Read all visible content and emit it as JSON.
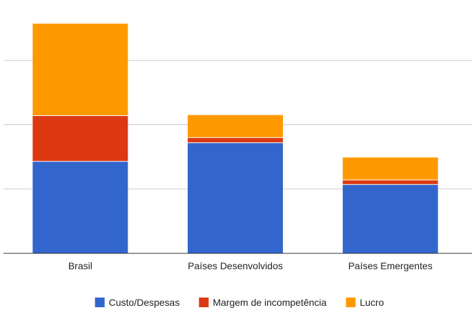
{
  "chart_data": {
    "type": "bar",
    "stacked": true,
    "categories": [
      "Brasil",
      "Países Desenvolvidos",
      "Países Emergentes"
    ],
    "series": [
      {
        "name": "Custo/Despesas",
        "color": "#3366cc",
        "values": [
          1.43,
          1.72,
          1.07
        ]
      },
      {
        "name": "Margem de incompetência",
        "color": "#dc3912",
        "values": [
          0.71,
          0.08,
          0.07
        ]
      },
      {
        "name": "Lucro",
        "color": "#ff9900",
        "values": [
          1.43,
          0.35,
          0.35
        ]
      }
    ],
    "ylim": [
      0,
      4
    ],
    "gridlines": [
      1,
      2,
      3
    ],
    "grid": true,
    "legend_position": "bottom",
    "title": "",
    "xlabel": "",
    "ylabel": ""
  }
}
